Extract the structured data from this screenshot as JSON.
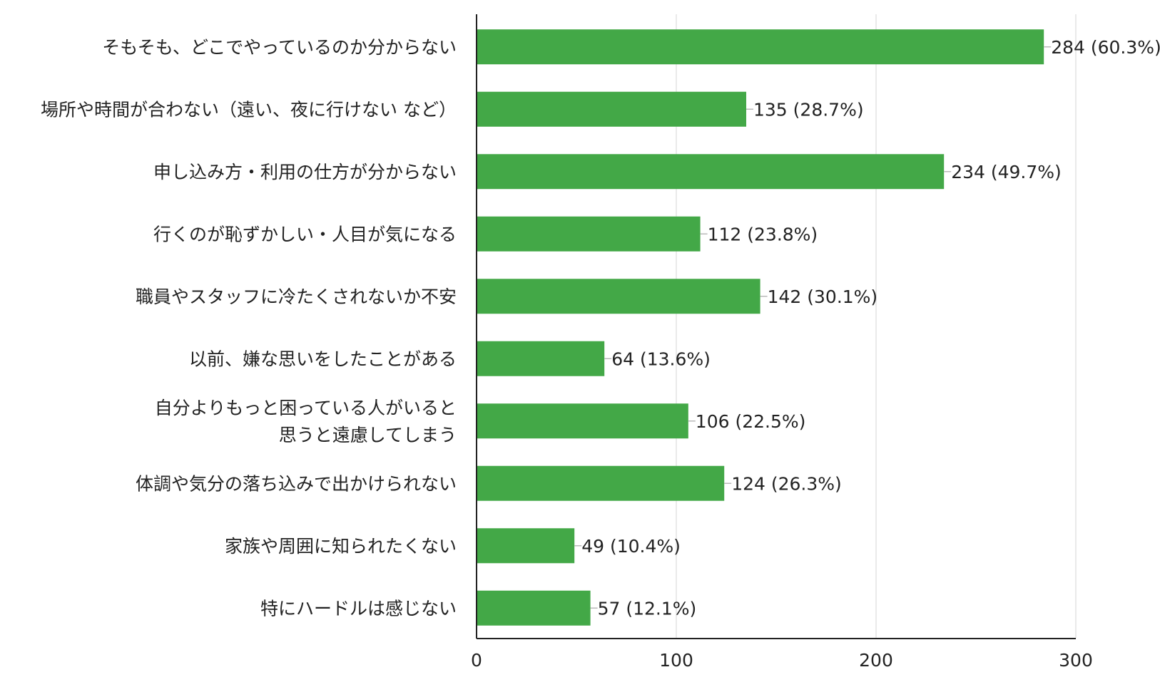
{
  "colors": {
    "bar": "#43a847",
    "axis": "#222222",
    "grid": "#e4e4e4",
    "text": "#222222",
    "background": "#ffffff"
  },
  "chart_data": {
    "type": "bar",
    "orientation": "horizontal",
    "categories": [
      [
        "そもそも、どこでやっているのか分からない"
      ],
      [
        "場所や時間が合わない（遠い、夜に行けない など）"
      ],
      [
        "申し込み方・利用の仕方が分からない"
      ],
      [
        "行くのが恥ずかしい・人目が気になる"
      ],
      [
        "職員やスタッフに冷たくされないか不安"
      ],
      [
        "以前、嫌な思いをしたことがある"
      ],
      [
        "自分よりもっと困っている人がいると",
        "思うと遠慮してしまう"
      ],
      [
        "体調や気分の落ち込みで出かけられない"
      ],
      [
        "家族や周囲に知られたくない"
      ],
      [
        "特にハードルは感じない"
      ]
    ],
    "values": [
      284,
      135,
      234,
      112,
      142,
      64,
      106,
      124,
      49,
      57
    ],
    "data_labels": [
      "284 (60.3%)",
      "135 (28.7%)",
      "234 (49.7%)",
      "112 (23.8%)",
      "142 (30.1%)",
      "64 (13.6%)",
      "106 (22.5%)",
      "124 (26.3%)",
      "49 (10.4%)",
      "57 (12.1%)"
    ],
    "xlim": [
      0,
      300
    ],
    "x_ticks": [
      0,
      100,
      200,
      300
    ],
    "x_tick_labels": [
      "0",
      "100",
      "200",
      "300"
    ],
    "grid": true,
    "title": "",
    "xlabel": "",
    "ylabel": ""
  }
}
